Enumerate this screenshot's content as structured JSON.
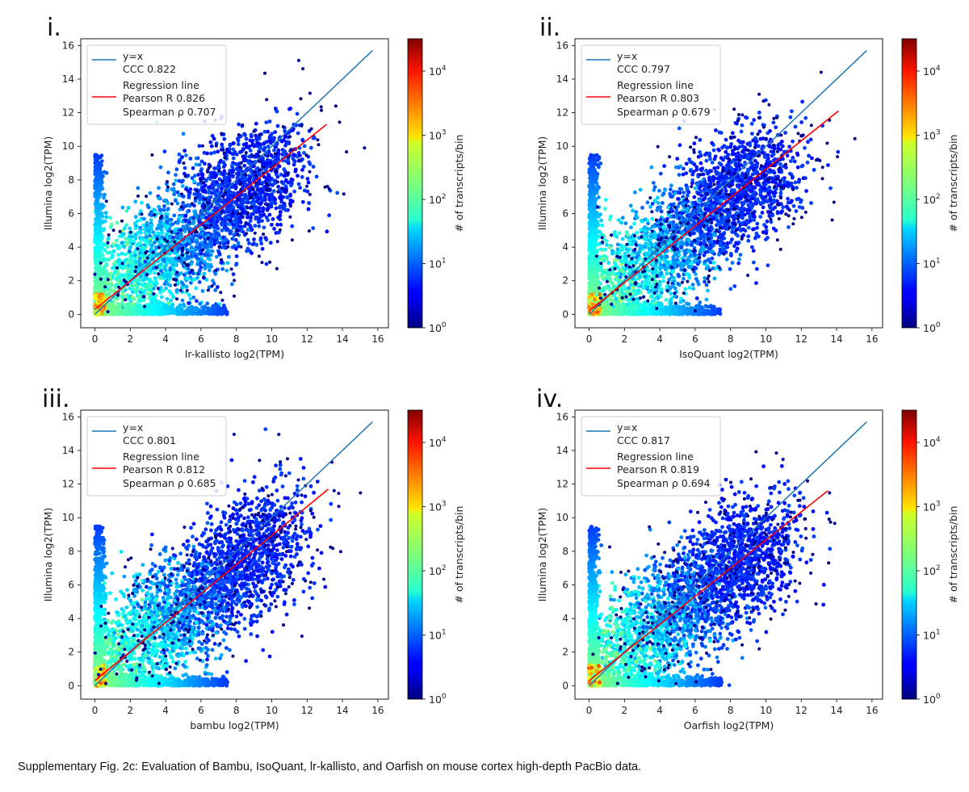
{
  "caption": "Supplementary Fig. 2c: Evaluation of Bambu, IsoQuant, lr-kallisto, and Oarfish on mouse cortex high-depth PacBio data.",
  "colors": {
    "identity_line": "#1f77b4",
    "regression_line": "#ff0000",
    "points_low": "#00008b"
  },
  "chart_data": [
    {
      "type": "scatter",
      "panel_label": "i.",
      "xlabel": "lr-kallisto log2(TPM)",
      "ylabel": "Illumina log2(TPM)",
      "xlim": [
        -0.8,
        16.6
      ],
      "ylim": [
        -0.8,
        16.4
      ],
      "xticks": [
        0,
        2,
        4,
        6,
        8,
        10,
        12,
        14,
        16
      ],
      "yticks": [
        0,
        2,
        4,
        6,
        8,
        10,
        12,
        14,
        16
      ],
      "series": [
        {
          "name": "y=x",
          "x": [
            0,
            15.7
          ],
          "y": [
            0,
            15.7
          ]
        },
        {
          "name": "Regression line",
          "x": [
            0,
            13.1
          ],
          "y": [
            0.3,
            11.3
          ]
        }
      ],
      "legend": [
        "y=x",
        "CCC 0.822",
        "Regression line",
        "Pearson R 0.826",
        "Spearman ρ 0.707"
      ],
      "legend_loc": "upper left",
      "colorbar": {
        "label": "# of transcripts/bin",
        "scale": "log",
        "ticks": [
          "10",
          "10",
          "10",
          "10",
          "10"
        ],
        "tick_exponents": [
          "0",
          "1",
          "2",
          "3",
          "4"
        ]
      }
    },
    {
      "type": "scatter",
      "panel_label": "ii.",
      "xlabel": "IsoQuant log2(TPM)",
      "ylabel": "Illumina log2(TPM)",
      "xlim": [
        -0.8,
        16.6
      ],
      "ylim": [
        -0.8,
        16.4
      ],
      "xticks": [
        0,
        2,
        4,
        6,
        8,
        10,
        12,
        14,
        16
      ],
      "yticks": [
        0,
        2,
        4,
        6,
        8,
        10,
        12,
        14,
        16
      ],
      "series": [
        {
          "name": "y=x",
          "x": [
            0,
            15.7
          ],
          "y": [
            0,
            15.7
          ]
        },
        {
          "name": "Regression line",
          "x": [
            0,
            14.1
          ],
          "y": [
            0.2,
            12.1
          ]
        }
      ],
      "legend": [
        "y=x",
        "CCC 0.797",
        "Regression line",
        "Pearson R 0.803",
        "Spearman ρ 0.679"
      ],
      "legend_loc": "upper left",
      "colorbar": {
        "label": "# of transcripts/bin",
        "scale": "log",
        "ticks": [
          "10",
          "10",
          "10",
          "10",
          "10"
        ],
        "tick_exponents": [
          "0",
          "1",
          "2",
          "3",
          "4"
        ]
      }
    },
    {
      "type": "scatter",
      "panel_label": "iii.",
      "xlabel": "bambu log2(TPM)",
      "ylabel": "Illumina log2(TPM)",
      "xlim": [
        -0.8,
        16.6
      ],
      "ylim": [
        -0.8,
        16.4
      ],
      "xticks": [
        0,
        2,
        4,
        6,
        8,
        10,
        12,
        14,
        16
      ],
      "yticks": [
        0,
        2,
        4,
        6,
        8,
        10,
        12,
        14,
        16
      ],
      "series": [
        {
          "name": "y=x",
          "x": [
            0,
            15.7
          ],
          "y": [
            0,
            15.7
          ]
        },
        {
          "name": "Regression line",
          "x": [
            0,
            13.2
          ],
          "y": [
            0.3,
            11.7
          ]
        }
      ],
      "legend": [
        "y=x",
        "CCC 0.801",
        "Regression line",
        "Pearson R 0.812",
        "Spearman ρ 0.685"
      ],
      "legend_loc": "upper left",
      "colorbar": {
        "label": "# of transcripts/bin",
        "scale": "log",
        "ticks": [
          "10",
          "10",
          "10",
          "10",
          "10"
        ],
        "tick_exponents": [
          "0",
          "1",
          "2",
          "3",
          "4"
        ]
      }
    },
    {
      "type": "scatter",
      "panel_label": "iv.",
      "xlabel": "Oarfish log2(TPM)",
      "ylabel": "Illumina log2(TPM)",
      "xlim": [
        -0.8,
        16.6
      ],
      "ylim": [
        -0.8,
        16.4
      ],
      "xticks": [
        0,
        2,
        4,
        6,
        8,
        10,
        12,
        14,
        16
      ],
      "yticks": [
        0,
        2,
        4,
        6,
        8,
        10,
        12,
        14,
        16
      ],
      "series": [
        {
          "name": "y=x",
          "x": [
            0,
            15.7
          ],
          "y": [
            0,
            15.7
          ]
        },
        {
          "name": "Regression line",
          "x": [
            0,
            13.5
          ],
          "y": [
            0.3,
            11.6
          ]
        }
      ],
      "legend": [
        "y=x",
        "CCC 0.817",
        "Regression line",
        "Pearson R 0.819",
        "Spearman ρ 0.694"
      ],
      "legend_loc": "upper left",
      "colorbar": {
        "label": "# of transcripts/bin",
        "scale": "log",
        "ticks": [
          "10",
          "10",
          "10",
          "10",
          "10"
        ],
        "tick_exponents": [
          "0",
          "1",
          "2",
          "3",
          "4"
        ]
      }
    }
  ]
}
